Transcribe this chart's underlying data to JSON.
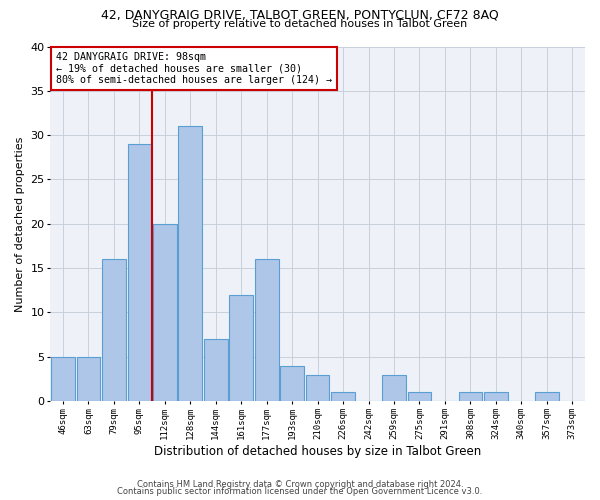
{
  "title_line1": "42, DANYGRAIG DRIVE, TALBOT GREEN, PONTYCLUN, CF72 8AQ",
  "title_line2": "Size of property relative to detached houses in Talbot Green",
  "xlabel": "Distribution of detached houses by size in Talbot Green",
  "ylabel": "Number of detached properties",
  "footnote1": "Contains HM Land Registry data © Crown copyright and database right 2024.",
  "footnote2": "Contains public sector information licensed under the Open Government Licence v3.0.",
  "annotation_title": "42 DANYGRAIG DRIVE: 98sqm",
  "annotation_line1": "← 19% of detached houses are smaller (30)",
  "annotation_line2": "80% of semi-detached houses are larger (124) →",
  "bin_labels": [
    "46sqm",
    "63sqm",
    "79sqm",
    "95sqm",
    "112sqm",
    "128sqm",
    "144sqm",
    "161sqm",
    "177sqm",
    "193sqm",
    "210sqm",
    "226sqm",
    "242sqm",
    "259sqm",
    "275sqm",
    "291sqm",
    "308sqm",
    "324sqm",
    "340sqm",
    "357sqm",
    "373sqm"
  ],
  "bar_values": [
    5,
    5,
    16,
    29,
    20,
    31,
    7,
    12,
    16,
    4,
    3,
    1,
    0,
    3,
    1,
    0,
    1,
    1,
    0,
    1,
    0
  ],
  "bar_color": "#aec6e8",
  "bar_edge_color": "#5a9fd4",
  "vline_x": 3.5,
  "vline_color": "#cc0000",
  "ylim": [
    0,
    40
  ],
  "yticks": [
    0,
    5,
    10,
    15,
    20,
    25,
    30,
    35,
    40
  ],
  "grid_color": "#c8d0dc",
  "bg_color": "#eef2f8",
  "annotation_box_color": "#ffffff",
  "annotation_box_edge": "#cc0000"
}
